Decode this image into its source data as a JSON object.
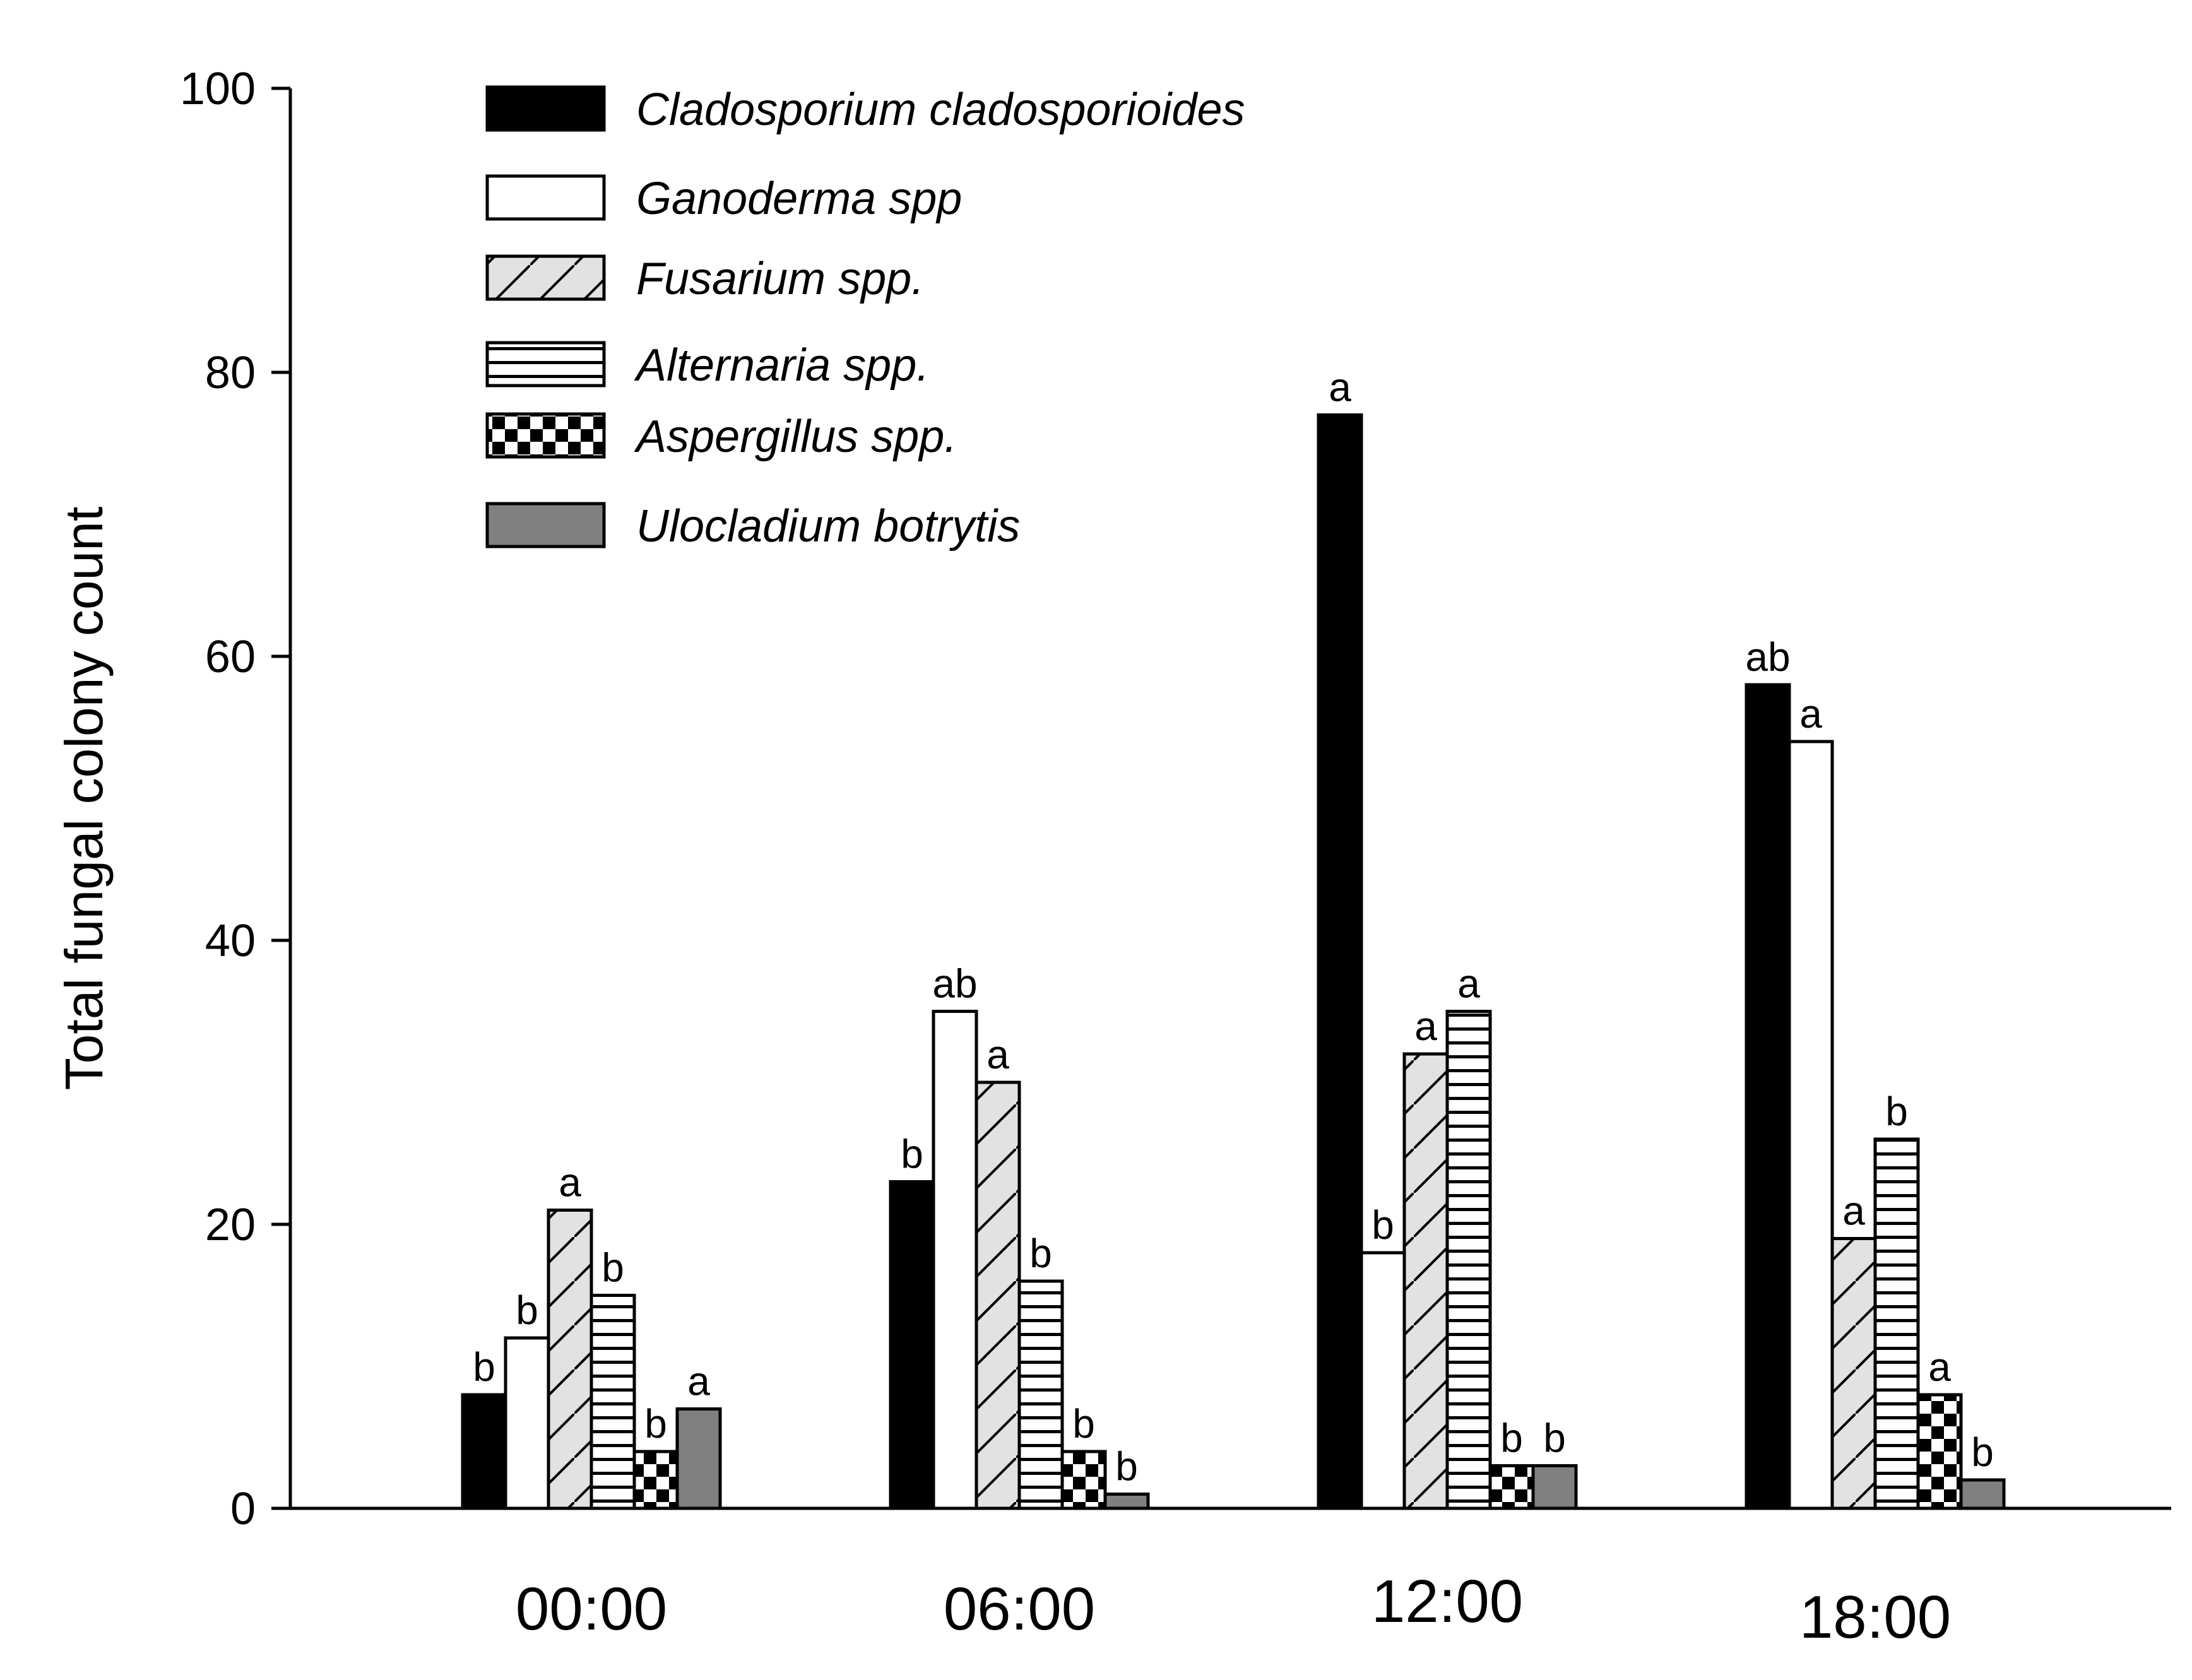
{
  "chart_data": {
    "type": "bar",
    "title": "",
    "xlabel": "",
    "ylabel": "Total fungal colony count",
    "ylim": [
      0,
      100
    ],
    "yticks": [
      0,
      20,
      40,
      60,
      80,
      100
    ],
    "categories": [
      "00:00",
      "06:00",
      "12:00",
      "18:00"
    ],
    "legend_position": "top-left",
    "series": [
      {
        "name": "Cladosporium cladosporioides",
        "pattern": "solid-black",
        "values": [
          8,
          23,
          77,
          58
        ],
        "letters": [
          "b",
          "b",
          "a",
          "ab"
        ]
      },
      {
        "name": "Ganoderma spp",
        "pattern": "white",
        "values": [
          12,
          35,
          18,
          54
        ],
        "letters": [
          "b",
          "ab",
          "b",
          "a"
        ]
      },
      {
        "name": "Fusarium spp.",
        "pattern": "diagonal-hatch",
        "values": [
          21,
          30,
          32,
          19
        ],
        "letters": [
          "a",
          "a",
          "a",
          "a"
        ]
      },
      {
        "name": "Alternaria spp.",
        "pattern": "horizontal-lines",
        "values": [
          15,
          16,
          35,
          26
        ],
        "letters": [
          "b",
          "b",
          "a",
          "b"
        ]
      },
      {
        "name": "Aspergillus spp.",
        "pattern": "checker",
        "values": [
          4,
          4,
          3,
          8
        ],
        "letters": [
          "b",
          "b",
          "b",
          "a"
        ]
      },
      {
        "name": "Ulocladium botrytis",
        "pattern": "solid-gray",
        "values": [
          7,
          1,
          3,
          2
        ],
        "letters": [
          "a",
          "b",
          "b",
          "b"
        ]
      }
    ],
    "colors": {
      "black": "#000000",
      "white": "#ffffff",
      "hatch_bg": "#e2e2e2",
      "gray": "#808080"
    }
  }
}
